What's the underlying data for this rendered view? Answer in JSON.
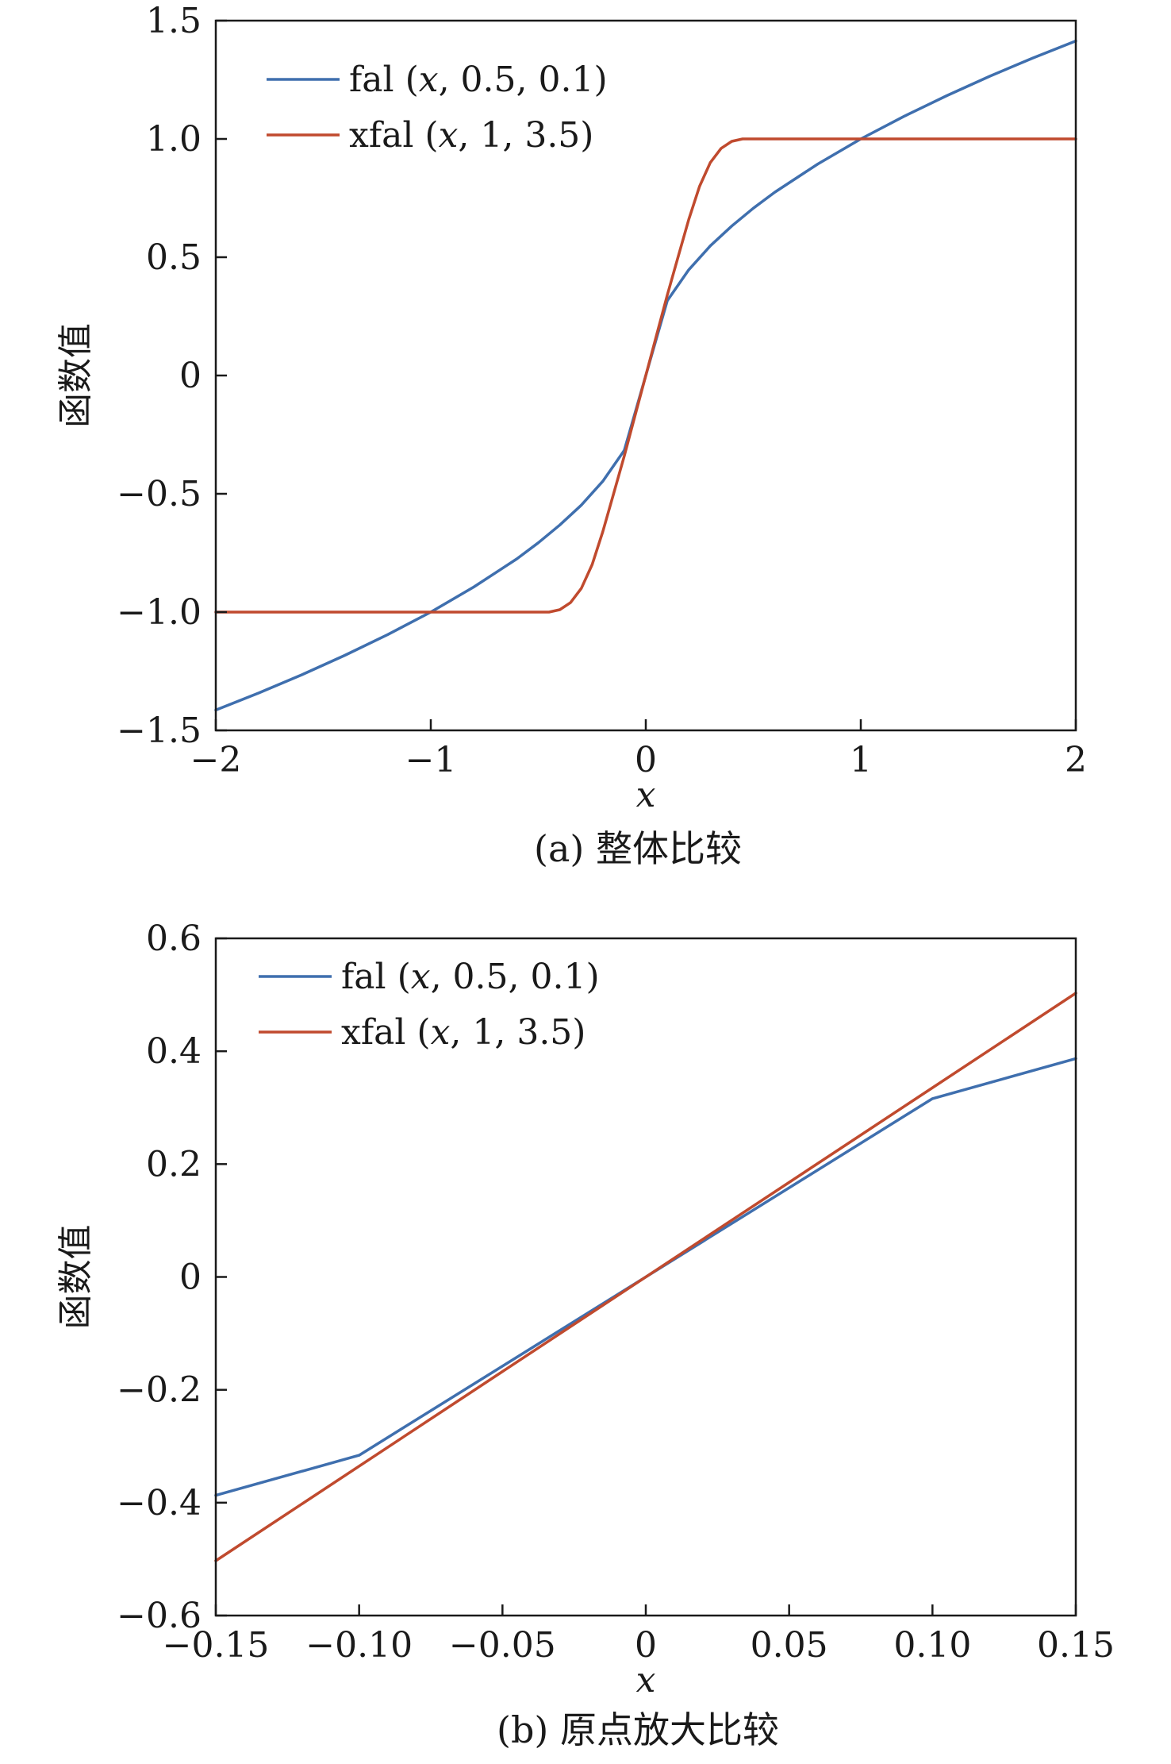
{
  "chart_data": [
    {
      "type": "line",
      "caption": "(a) 整体比较",
      "xlabel": "x",
      "ylabel": "函数值",
      "xlim": [
        -2,
        2
      ],
      "ylim": [
        -1.5,
        1.5
      ],
      "xticks": [
        -2,
        -1,
        0,
        1,
        2
      ],
      "xtick_labels": [
        "−2",
        "−1",
        "0",
        "1",
        "2"
      ],
      "yticks": [
        -1.5,
        -1.0,
        -0.5,
        0,
        0.5,
        1.0,
        1.5
      ],
      "ytick_labels": [
        "−1.5",
        "−1.0",
        "−0.5",
        "0",
        "0.5",
        "1.0",
        "1.5"
      ],
      "grid": false,
      "legend_position": "top-left",
      "series": [
        {
          "name": "fal (x, 0.5, 0.1)",
          "name_parts": [
            "fal (",
            "x",
            ", 0.5, 0.1)"
          ],
          "color": "#3f6fae",
          "x": [
            -2.0,
            -1.8,
            -1.6,
            -1.4,
            -1.2,
            -1.0,
            -0.8,
            -0.6,
            -0.5,
            -0.4,
            -0.3,
            -0.2,
            -0.1,
            0,
            0.1,
            0.2,
            0.3,
            0.4,
            0.5,
            0.6,
            0.8,
            1.0,
            1.2,
            1.4,
            1.6,
            1.8,
            2.0
          ],
          "y": [
            -1.414,
            -1.342,
            -1.265,
            -1.183,
            -1.095,
            -1.0,
            -0.894,
            -0.775,
            -0.707,
            -0.632,
            -0.548,
            -0.447,
            -0.316,
            0,
            0.316,
            0.447,
            0.548,
            0.632,
            0.707,
            0.775,
            0.894,
            1.0,
            1.095,
            1.183,
            1.265,
            1.342,
            1.414
          ]
        },
        {
          "name": "xfal (x, 1, 3.5)",
          "name_parts": [
            "xfal (",
            "x",
            ", 1, 3.5)"
          ],
          "color": "#c04a2e",
          "x": [
            -2.0,
            -1.0,
            -0.45,
            -0.4,
            -0.35,
            -0.3,
            -0.25,
            -0.2,
            -0.15,
            -0.1,
            -0.05,
            0,
            0.05,
            0.1,
            0.15,
            0.2,
            0.25,
            0.3,
            0.35,
            0.4,
            0.45,
            1.0,
            2.0
          ],
          "y": [
            -1.0,
            -1.0,
            -1.0,
            -0.99,
            -0.96,
            -0.9,
            -0.8,
            -0.66,
            -0.5,
            -0.34,
            -0.17,
            0,
            0.17,
            0.34,
            0.5,
            0.66,
            0.8,
            0.9,
            0.96,
            0.99,
            1.0,
            1.0,
            1.0
          ]
        }
      ]
    },
    {
      "type": "line",
      "caption": "(b) 原点放大比较",
      "xlabel": "x",
      "ylabel": "函数值",
      "xlim": [
        -0.15,
        0.15
      ],
      "ylim": [
        -0.6,
        0.6
      ],
      "xticks": [
        -0.15,
        -0.1,
        -0.05,
        0,
        0.05,
        0.1,
        0.15
      ],
      "xtick_labels": [
        "−0.15",
        "−0.10",
        "−0.05",
        "0",
        "0.05",
        "0.10",
        "0.15"
      ],
      "yticks": [
        -0.6,
        -0.4,
        -0.2,
        0,
        0.2,
        0.4,
        0.6
      ],
      "ytick_labels": [
        "−0.6",
        "−0.4",
        "−0.2",
        "0",
        "0.2",
        "0.4",
        "0.6"
      ],
      "grid": false,
      "legend_position": "top-left",
      "series": [
        {
          "name": "fal (x, 0.5, 0.1)",
          "name_parts": [
            "fal (",
            "x",
            ", 0.5, 0.1)"
          ],
          "color": "#3f6fae",
          "x": [
            -0.15,
            -0.1,
            0.1,
            0.15
          ],
          "y": [
            -0.387,
            -0.316,
            0.316,
            0.387
          ]
        },
        {
          "name": "xfal (x, 1, 3.5)",
          "name_parts": [
            "xfal (",
            "x",
            ", 1, 3.5)"
          ],
          "color": "#c04a2e",
          "x": [
            -0.15,
            0.15
          ],
          "y": [
            -0.503,
            0.503
          ]
        }
      ]
    }
  ]
}
